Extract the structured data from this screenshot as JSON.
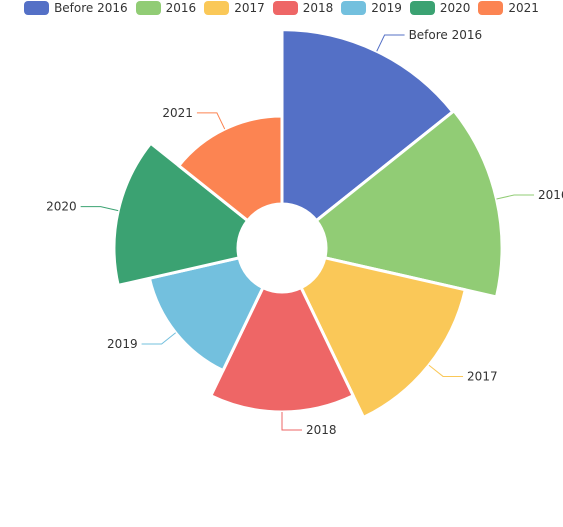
{
  "chart_data": {
    "type": "pie",
    "rose_type": "radius",
    "categories": [
      "Before 2016",
      "2016",
      "2017",
      "2018",
      "2019",
      "2020",
      "2021"
    ],
    "values": [
      218,
      220,
      180,
      150,
      115,
      155,
      110
    ],
    "colors": [
      "#5470c6",
      "#91cc75",
      "#fac858",
      "#ee6666",
      "#73c0de",
      "#3ba272",
      "#fc8452"
    ],
    "legend": {
      "position": "top"
    }
  }
}
